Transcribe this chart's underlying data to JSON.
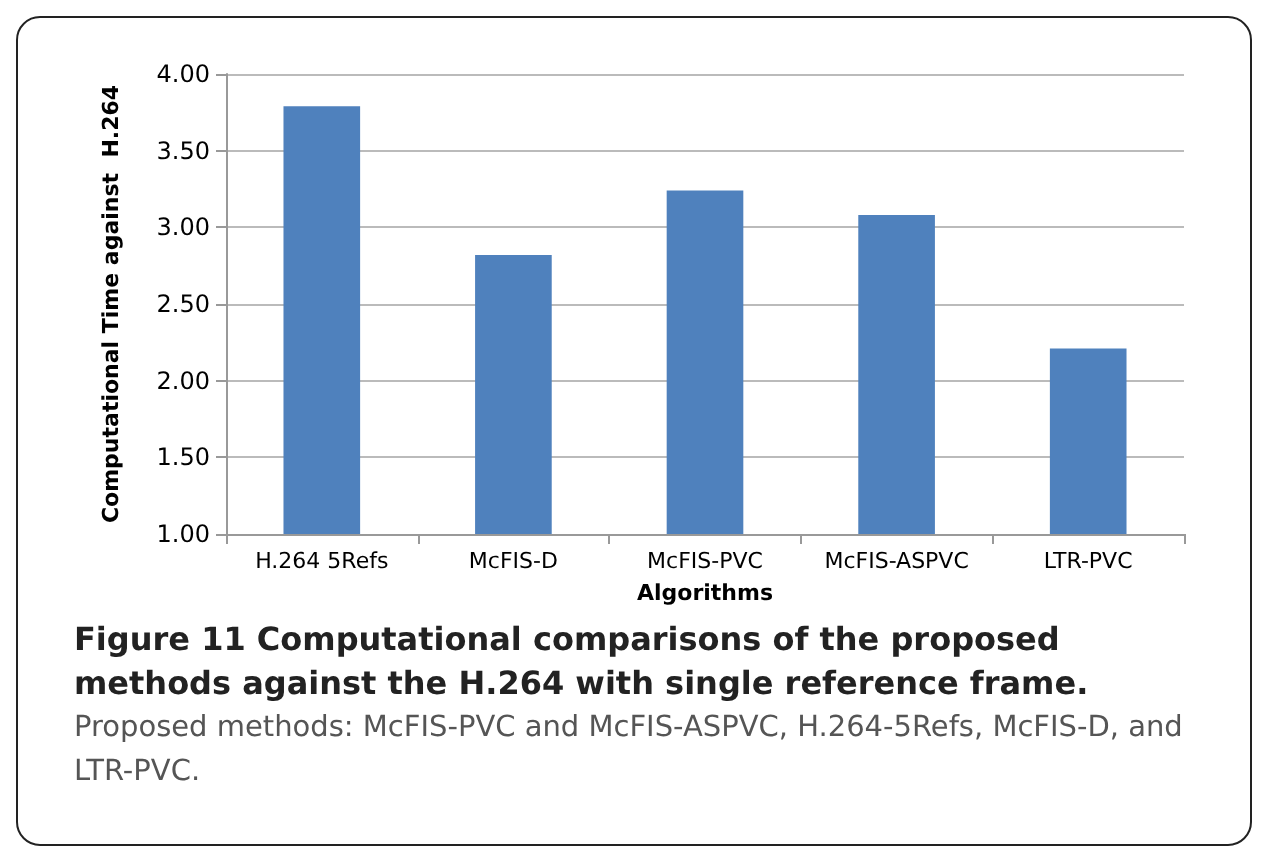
{
  "chart_data": {
    "type": "bar",
    "title": "Figure 11 Computational comparisons of the proposed methods against the H.264 with single reference frame.",
    "subtitle": "Proposed methods: McFIS-PVC and McFIS-ASPVC, H.264-5Refs, McFIS-D, and LTR-PVC.",
    "xlabel": "Algorithms",
    "ylabel": "Computational Time against  H.264",
    "categories": [
      "H.264 5Refs",
      "McFIS-D",
      "McFIS-PVC",
      "McFIS-ASPVC",
      "LTR-PVC"
    ],
    "values": [
      3.79,
      2.82,
      3.24,
      3.08,
      2.21
    ],
    "color": "#4f81bd",
    "ylim": [
      1,
      4
    ],
    "yticks": [
      {
        "value": 1,
        "label": "1.00"
      },
      {
        "value": 1.5,
        "label": "1.50"
      },
      {
        "value": 2,
        "label": "2.00"
      },
      {
        "value": 2.5,
        "label": "2.50"
      },
      {
        "value": 3,
        "label": "3.00"
      },
      {
        "value": 3.5,
        "label": "3.50"
      },
      {
        "value": 4,
        "label": "4.00"
      }
    ],
    "grid": "y"
  }
}
